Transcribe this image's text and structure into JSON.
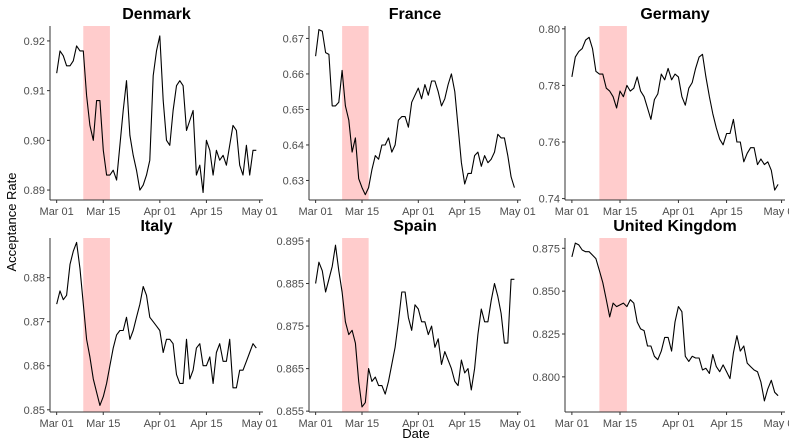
{
  "chart_data": {
    "type": "line",
    "xlabel": "Date",
    "ylabel": "Acceptance Rate",
    "x_tick_labels": [
      "Mar 01",
      "Mar 15",
      "Apr 01",
      "Apr 15",
      "May 01"
    ],
    "x_tick_days": [
      1,
      15,
      32,
      46,
      62
    ],
    "shaded_period_days": [
      9,
      17
    ],
    "colors": {
      "line": "#000000",
      "shade": "#ffcccc",
      "axis": "#333333"
    },
    "grid": false,
    "panels": [
      {
        "title": "Denmark",
        "ylim": [
          0.888,
          0.923
        ],
        "y_ticks": [
          0.89,
          0.9,
          0.91,
          0.92
        ],
        "y_tick_labels": [
          "0.89",
          "0.90",
          "0.91",
          "0.92"
        ],
        "x": [
          1,
          2,
          3,
          4,
          5,
          6,
          7,
          8,
          9,
          10,
          11,
          12,
          13,
          14,
          15,
          16,
          17,
          18,
          19,
          20,
          21,
          22,
          23,
          24,
          25,
          26,
          27,
          28,
          29,
          30,
          31,
          32,
          33,
          34,
          35,
          36,
          37,
          38,
          39,
          40,
          41,
          42,
          43,
          44,
          45,
          46,
          47,
          48,
          49,
          50,
          51,
          52,
          53,
          54,
          55,
          56,
          57,
          58,
          59,
          60,
          61
        ],
        "y": [
          0.9135,
          0.918,
          0.917,
          0.915,
          0.915,
          0.916,
          0.919,
          0.918,
          0.918,
          0.909,
          0.903,
          0.9,
          0.908,
          0.908,
          0.898,
          0.893,
          0.893,
          0.894,
          0.892,
          0.899,
          0.906,
          0.912,
          0.901,
          0.897,
          0.894,
          0.89,
          0.891,
          0.893,
          0.896,
          0.913,
          0.918,
          0.921,
          0.908,
          0.9,
          0.899,
          0.906,
          0.911,
          0.912,
          0.911,
          0.902,
          0.904,
          0.906,
          0.893,
          0.895,
          0.8895,
          0.9,
          0.898,
          0.893,
          0.898,
          0.896,
          0.897,
          0.895,
          0.899,
          0.903,
          0.902,
          0.895,
          0.893,
          0.899,
          0.893,
          0.898,
          0.898
        ]
      },
      {
        "title": "France",
        "ylim": [
          0.6245,
          0.6735
        ],
        "y_ticks": [
          0.63,
          0.64,
          0.65,
          0.66,
          0.67
        ],
        "y_tick_labels": [
          "0.63",
          "0.64",
          "0.65",
          "0.66",
          "0.67"
        ],
        "x": [
          1,
          2,
          3,
          4,
          5,
          6,
          7,
          8,
          9,
          10,
          11,
          12,
          13,
          14,
          15,
          16,
          17,
          18,
          19,
          20,
          21,
          22,
          23,
          24,
          25,
          26,
          27,
          28,
          29,
          30,
          31,
          32,
          33,
          34,
          35,
          36,
          37,
          38,
          39,
          40,
          41,
          42,
          43,
          44,
          45,
          46,
          47,
          48,
          49,
          50,
          51,
          52,
          53,
          54,
          55,
          56,
          57,
          58,
          59,
          60,
          61
        ],
        "y": [
          0.665,
          0.6725,
          0.672,
          0.666,
          0.6655,
          0.651,
          0.651,
          0.652,
          0.661,
          0.651,
          0.647,
          0.638,
          0.642,
          0.6305,
          0.628,
          0.626,
          0.628,
          0.633,
          0.637,
          0.636,
          0.64,
          0.64,
          0.642,
          0.638,
          0.64,
          0.647,
          0.648,
          0.648,
          0.645,
          0.652,
          0.654,
          0.656,
          0.653,
          0.657,
          0.654,
          0.658,
          0.658,
          0.655,
          0.651,
          0.653,
          0.657,
          0.66,
          0.655,
          0.645,
          0.635,
          0.629,
          0.632,
          0.632,
          0.637,
          0.638,
          0.634,
          0.637,
          0.635,
          0.636,
          0.638,
          0.643,
          0.642,
          0.642,
          0.637,
          0.631,
          0.628
        ]
      },
      {
        "title": "Germany",
        "ylim": [
          0.7395,
          0.801
        ],
        "y_ticks": [
          0.74,
          0.76,
          0.78,
          0.8
        ],
        "y_tick_labels": [
          "0.74",
          "0.76",
          "0.78",
          "0.80"
        ],
        "x": [
          1,
          2,
          3,
          4,
          5,
          6,
          7,
          8,
          9,
          10,
          11,
          12,
          13,
          14,
          15,
          16,
          17,
          18,
          19,
          20,
          21,
          22,
          23,
          24,
          25,
          26,
          27,
          28,
          29,
          30,
          31,
          32,
          33,
          34,
          35,
          36,
          37,
          38,
          39,
          40,
          41,
          42,
          43,
          44,
          45,
          46,
          47,
          48,
          49,
          50,
          51,
          52,
          53,
          54,
          55,
          56,
          57,
          58,
          59,
          60,
          61
        ],
        "y": [
          0.783,
          0.79,
          0.792,
          0.793,
          0.796,
          0.797,
          0.793,
          0.785,
          0.784,
          0.784,
          0.779,
          0.778,
          0.776,
          0.772,
          0.778,
          0.776,
          0.78,
          0.778,
          0.779,
          0.783,
          0.778,
          0.776,
          0.772,
          0.768,
          0.775,
          0.777,
          0.784,
          0.782,
          0.786,
          0.782,
          0.784,
          0.783,
          0.776,
          0.773,
          0.779,
          0.781,
          0.786,
          0.79,
          0.791,
          0.783,
          0.776,
          0.77,
          0.765,
          0.761,
          0.759,
          0.763,
          0.763,
          0.768,
          0.76,
          0.76,
          0.753,
          0.756,
          0.758,
          0.758,
          0.752,
          0.754,
          0.752,
          0.753,
          0.75,
          0.743,
          0.745
        ]
      },
      {
        "title": "Italy",
        "ylim": [
          0.8495,
          0.889
        ],
        "y_ticks": [
          0.85,
          0.86,
          0.87,
          0.88
        ],
        "y_tick_labels": [
          "0.85",
          "0.86",
          "0.87",
          "0.88"
        ],
        "x": [
          1,
          2,
          3,
          4,
          5,
          6,
          7,
          8,
          9,
          10,
          11,
          12,
          13,
          14,
          15,
          16,
          17,
          18,
          19,
          20,
          21,
          22,
          23,
          24,
          25,
          26,
          27,
          28,
          29,
          30,
          31,
          32,
          33,
          34,
          35,
          36,
          37,
          38,
          39,
          40,
          41,
          42,
          43,
          44,
          45,
          46,
          47,
          48,
          49,
          50,
          51,
          52,
          53,
          54,
          55,
          56,
          57,
          58,
          59,
          60,
          61
        ],
        "y": [
          0.874,
          0.877,
          0.875,
          0.876,
          0.883,
          0.886,
          0.888,
          0.882,
          0.874,
          0.866,
          0.862,
          0.857,
          0.854,
          0.851,
          0.853,
          0.856,
          0.86,
          0.864,
          0.867,
          0.868,
          0.868,
          0.871,
          0.866,
          0.868,
          0.871,
          0.874,
          0.878,
          0.876,
          0.871,
          0.87,
          0.869,
          0.868,
          0.863,
          0.866,
          0.866,
          0.865,
          0.858,
          0.856,
          0.856,
          0.866,
          0.857,
          0.859,
          0.864,
          0.865,
          0.86,
          0.86,
          0.862,
          0.856,
          0.863,
          0.865,
          0.861,
          0.861,
          0.866,
          0.855,
          0.855,
          0.859,
          0.859,
          0.861,
          0.863,
          0.865,
          0.864
        ]
      },
      {
        "title": "Spain",
        "ylim": [
          0.8548,
          0.8957
        ],
        "y_ticks": [
          0.855,
          0.865,
          0.875,
          0.885,
          0.895
        ],
        "y_tick_labels": [
          "0.855",
          "0.865",
          "0.875",
          "0.885",
          "0.895"
        ],
        "x": [
          1,
          2,
          3,
          4,
          5,
          6,
          7,
          8,
          9,
          10,
          11,
          12,
          13,
          14,
          15,
          16,
          17,
          18,
          19,
          20,
          21,
          22,
          23,
          24,
          25,
          26,
          27,
          28,
          29,
          30,
          31,
          32,
          33,
          34,
          35,
          36,
          37,
          38,
          39,
          40,
          41,
          42,
          43,
          44,
          45,
          46,
          47,
          48,
          49,
          50,
          51,
          52,
          53,
          54,
          55,
          56,
          57,
          58,
          59,
          60,
          61
        ],
        "y": [
          0.885,
          0.89,
          0.888,
          0.883,
          0.886,
          0.889,
          0.894,
          0.888,
          0.883,
          0.876,
          0.873,
          0.874,
          0.871,
          0.862,
          0.856,
          0.857,
          0.865,
          0.862,
          0.863,
          0.861,
          0.861,
          0.859,
          0.862,
          0.866,
          0.87,
          0.876,
          0.883,
          0.883,
          0.877,
          0.874,
          0.88,
          0.879,
          0.876,
          0.876,
          0.873,
          0.875,
          0.87,
          0.872,
          0.866,
          0.869,
          0.867,
          0.865,
          0.862,
          0.861,
          0.867,
          0.864,
          0.865,
          0.86,
          0.865,
          0.873,
          0.879,
          0.876,
          0.876,
          0.881,
          0.885,
          0.882,
          0.878,
          0.871,
          0.871,
          0.886,
          0.886
        ]
      },
      {
        "title": "United Kingdom",
        "ylim": [
          0.7795,
          0.881
        ],
        "y_ticks": [
          0.8,
          0.825,
          0.85,
          0.875
        ],
        "y_tick_labels": [
          "0.800",
          "0.825",
          "0.850",
          "0.875"
        ],
        "x": [
          1,
          2,
          3,
          4,
          5,
          6,
          7,
          8,
          9,
          10,
          11,
          12,
          13,
          14,
          15,
          16,
          17,
          18,
          19,
          20,
          21,
          22,
          23,
          24,
          25,
          26,
          27,
          28,
          29,
          30,
          31,
          32,
          33,
          34,
          35,
          36,
          37,
          38,
          39,
          40,
          41,
          42,
          43,
          44,
          45,
          46,
          47,
          48,
          49,
          50,
          51,
          52,
          53,
          54,
          55,
          56,
          57,
          58,
          59,
          60,
          61
        ],
        "y": [
          0.87,
          0.878,
          0.877,
          0.874,
          0.873,
          0.873,
          0.871,
          0.869,
          0.862,
          0.855,
          0.845,
          0.835,
          0.843,
          0.841,
          0.842,
          0.843,
          0.841,
          0.845,
          0.843,
          0.832,
          0.828,
          0.827,
          0.818,
          0.818,
          0.812,
          0.81,
          0.815,
          0.823,
          0.823,
          0.815,
          0.832,
          0.841,
          0.838,
          0.812,
          0.809,
          0.812,
          0.811,
          0.811,
          0.804,
          0.805,
          0.802,
          0.813,
          0.806,
          0.803,
          0.807,
          0.803,
          0.799,
          0.814,
          0.824,
          0.815,
          0.818,
          0.808,
          0.806,
          0.804,
          0.803,
          0.797,
          0.786,
          0.793,
          0.798,
          0.791,
          0.789
        ]
      }
    ]
  }
}
